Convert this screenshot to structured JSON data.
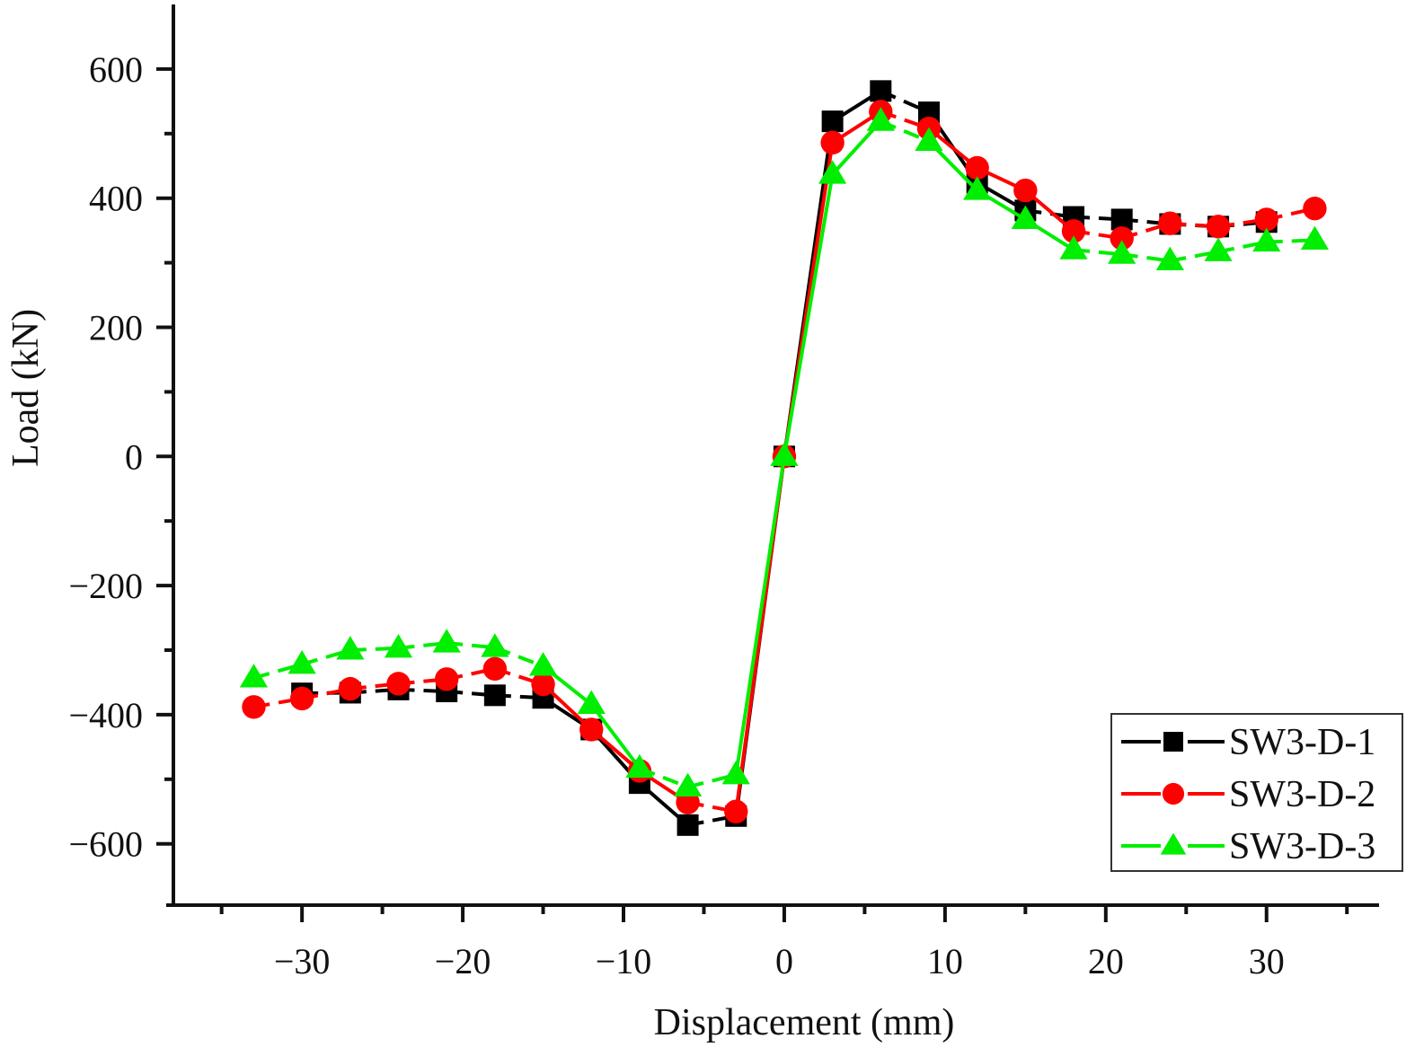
{
  "chart_data": {
    "type": "line",
    "title": "",
    "xlabel": "Displacement (mm)",
    "ylabel": "Load (kN)",
    "xlim": [
      -38,
      37
    ],
    "ylim": [
      -695,
      700
    ],
    "x_ticks": [
      -30,
      -20,
      -10,
      0,
      10,
      20,
      30
    ],
    "x_tick_labels": [
      "−30",
      "−20",
      "−10",
      "0",
      "10",
      "20",
      "30"
    ],
    "x_minor_ticks": [
      -35,
      -25,
      -15,
      -5,
      5,
      15,
      25,
      35
    ],
    "y_ticks": [
      600,
      400,
      200,
      0,
      -200,
      -400,
      -600
    ],
    "y_tick_labels": [
      "600",
      "400",
      "200",
      "0",
      "−200",
      "−400",
      "−600"
    ],
    "y_minor_ticks": [
      500,
      300,
      100,
      -100,
      -300,
      -500
    ],
    "grid": false,
    "legend_position": "bottom-right",
    "series": [
      {
        "name": "SW3-D-1",
        "color": "#000000",
        "marker": "square",
        "x": [
          -30,
          -27,
          -24,
          -21,
          -18,
          -15,
          -12,
          -9,
          -6,
          -3,
          0,
          3,
          6,
          9,
          12,
          15,
          18,
          21,
          24,
          27,
          30
        ],
        "values": [
          -367,
          -366,
          -361,
          -364,
          -370,
          -374,
          -423,
          -506,
          -571,
          -557,
          0,
          519,
          566,
          533,
          424,
          381,
          371,
          367,
          360,
          356,
          363
        ]
      },
      {
        "name": "SW3-D-2",
        "color": "#ff0000",
        "marker": "circle",
        "x": [
          -33,
          -30,
          -27,
          -24,
          -21,
          -18,
          -15,
          -12,
          -9,
          -6,
          -3,
          0,
          3,
          6,
          9,
          12,
          15,
          18,
          21,
          24,
          27,
          30,
          33
        ],
        "values": [
          -388,
          -375,
          -360,
          -352,
          -345,
          -329,
          -353,
          -423,
          -487,
          -536,
          -550,
          0,
          486,
          534,
          508,
          447,
          412,
          349,
          338,
          361,
          356,
          367,
          384
        ]
      },
      {
        "name": "SW3-D-3",
        "color": "#00ee00",
        "marker": "triangle",
        "x": [
          -33,
          -30,
          -27,
          -24,
          -21,
          -18,
          -15,
          -12,
          -9,
          -6,
          -3,
          0,
          3,
          6,
          9,
          12,
          15,
          18,
          21,
          24,
          27,
          30,
          33
        ],
        "values": [
          -343,
          -322,
          -300,
          -297,
          -289,
          -296,
          -325,
          -384,
          -483,
          -512,
          -493,
          0,
          437,
          519,
          488,
          412,
          367,
          320,
          313,
          303,
          317,
          332,
          335
        ]
      }
    ]
  }
}
